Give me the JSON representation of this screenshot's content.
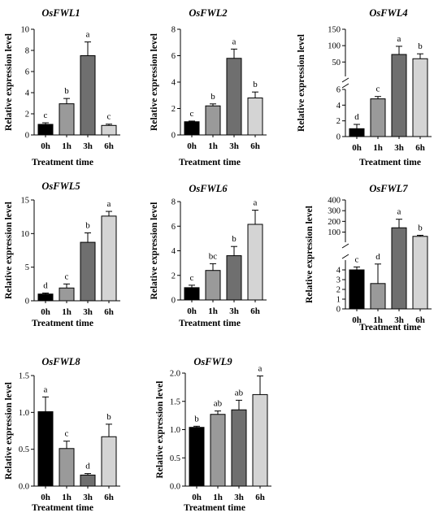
{
  "chart_data": [
    {
      "id": "fwl1",
      "type": "bar",
      "title": "OsFWL1",
      "xlabel": "Treatment time",
      "ylabel": "Relative expression level",
      "categories": [
        "0h",
        "1h",
        "3h",
        "6h"
      ],
      "values": [
        1.0,
        2.95,
        7.5,
        0.9
      ],
      "errors": [
        0.15,
        0.5,
        1.3,
        0.12
      ],
      "letters": [
        "c",
        "b",
        "a",
        "c"
      ],
      "ylim": [
        0,
        10
      ],
      "yticks": [
        0,
        2,
        4,
        6,
        8,
        10
      ],
      "yticklabels": [
        "0",
        "2",
        "4",
        "6",
        "8",
        "10"
      ]
    },
    {
      "id": "fwl2",
      "type": "bar",
      "title": "OsFWL2",
      "xlabel": "Treatment time",
      "ylabel": "Relative expression level",
      "categories": [
        "0h",
        "1h",
        "3h",
        "6h"
      ],
      "values": [
        1.0,
        2.2,
        5.8,
        2.8
      ],
      "errors": [
        0.05,
        0.15,
        0.7,
        0.45
      ],
      "letters": [
        "c",
        "b",
        "a",
        "b"
      ],
      "ylim": [
        0,
        8
      ],
      "yticks": [
        0,
        2,
        4,
        6,
        8
      ],
      "yticklabels": [
        "0",
        "2",
        "4",
        "6",
        "8"
      ]
    },
    {
      "id": "fwl4",
      "type": "bar",
      "title": "OsFWL4",
      "xlabel": "Treatment time",
      "ylabel": "Relative expression level",
      "categories": [
        "0h",
        "1h",
        "3h",
        "6h"
      ],
      "values": [
        1.0,
        4.8,
        73,
        60
      ],
      "errors": [
        0.55,
        0.3,
        25,
        15
      ],
      "letters": [
        "d",
        "c",
        "a",
        "b"
      ],
      "axis_break": {
        "lower": [
          0,
          6
        ],
        "upper": [
          6,
          150
        ]
      },
      "yticks": [
        0,
        2,
        4,
        6,
        50,
        100,
        150
      ],
      "yticklabels": [
        "0",
        "2",
        "4",
        "6",
        "50",
        "100",
        "150"
      ]
    },
    {
      "id": "fwl5",
      "type": "bar",
      "title": "OsFWL5",
      "xlabel": "Treatment time",
      "ylabel": "Relative expression level",
      "categories": [
        "0h",
        "1h",
        "3h",
        "6h"
      ],
      "values": [
        1.0,
        1.9,
        8.7,
        12.6
      ],
      "errors": [
        0.15,
        0.6,
        1.4,
        0.7
      ],
      "letters": [
        "d",
        "c",
        "b",
        "a"
      ],
      "ylim": [
        0,
        15
      ],
      "yticks": [
        0,
        5,
        10,
        15
      ],
      "yticklabels": [
        "0",
        "5",
        "10",
        "15"
      ]
    },
    {
      "id": "fwl6",
      "type": "bar",
      "title": "OsFWL6",
      "xlabel": "Treatment time",
      "ylabel": "Relative expression level",
      "categories": [
        "0h",
        "1h",
        "3h",
        "6h"
      ],
      "values": [
        1.0,
        2.4,
        3.6,
        6.15
      ],
      "errors": [
        0.2,
        0.55,
        0.75,
        1.15
      ],
      "letters": [
        "c",
        "bc",
        "b",
        "a"
      ],
      "ylim": [
        0,
        8
      ],
      "yticks": [
        0,
        2,
        4,
        6,
        8
      ],
      "yticklabels": [
        "0",
        "2",
        "4",
        "6",
        "8"
      ]
    },
    {
      "id": "fwl7",
      "type": "bar",
      "title": "OsFWL7",
      "xlabel": "Treatment time",
      "ylabel": "Relative expression level",
      "categories": [
        "0h",
        "1h",
        "3h",
        "6h"
      ],
      "values": [
        4.0,
        2.6,
        140,
        60
      ],
      "errors": [
        0.3,
        2.0,
        80,
        10
      ],
      "letters": [
        "c",
        "d",
        "a",
        "b"
      ],
      "axis_break": {
        "lower": [
          0,
          5
        ],
        "upper": [
          5,
          400
        ]
      },
      "yticks": [
        0,
        1,
        2,
        3,
        4,
        100,
        200,
        300,
        400
      ],
      "yticklabels": [
        "0",
        "1",
        "2",
        "3",
        "4",
        "100",
        "200",
        "300",
        "400"
      ]
    },
    {
      "id": "fwl8",
      "type": "bar",
      "title": "OsFWL8",
      "xlabel": "Treatment time",
      "ylabel": "Relative expression level",
      "categories": [
        "0h",
        "1h",
        "3h",
        "6h"
      ],
      "values": [
        1.01,
        0.51,
        0.15,
        0.67
      ],
      "errors": [
        0.2,
        0.1,
        0.02,
        0.17
      ],
      "letters": [
        "a",
        "c",
        "d",
        "b"
      ],
      "ylim": [
        0,
        1.5
      ],
      "yticks": [
        0,
        0.5,
        1.0,
        1.5
      ],
      "yticklabels": [
        "0.0",
        "0.5",
        "1.0",
        "1.5"
      ]
    },
    {
      "id": "fwl9",
      "type": "bar",
      "title": "OsFWL9",
      "xlabel": "Treatment time",
      "ylabel": "Relative expression level",
      "categories": [
        "0h",
        "1h",
        "3h",
        "6h"
      ],
      "values": [
        1.04,
        1.27,
        1.35,
        1.62
      ],
      "errors": [
        0.02,
        0.06,
        0.17,
        0.33
      ],
      "letters": [
        "b",
        "ab",
        "ab",
        "a"
      ],
      "ylim": [
        0,
        2.0
      ],
      "yticks": [
        0,
        0.5,
        1.0,
        1.5,
        2.0
      ],
      "yticklabels": [
        "0.0",
        "0.5",
        "1.0",
        "1.5",
        "2.0"
      ]
    }
  ],
  "colors": {
    "bars": [
      "#000000",
      "#9a9a9a",
      "#6f6f6f",
      "#d4d4d4"
    ],
    "axis": "#000000"
  }
}
